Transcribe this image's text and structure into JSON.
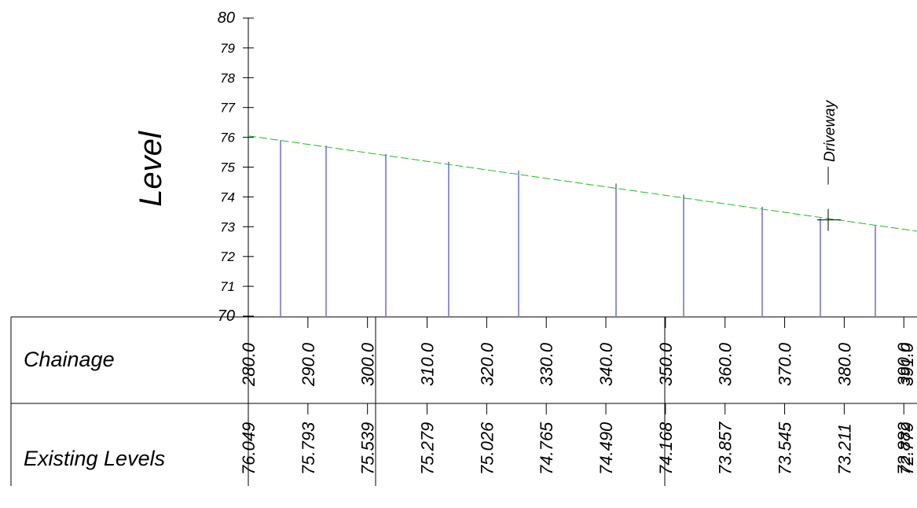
{
  "chart_data": {
    "type": "line",
    "title": "",
    "xlabel": "",
    "ylabel": "Level",
    "ylim": [
      70,
      80
    ],
    "yticks": [
      "70",
      "71",
      "72",
      "73",
      "74",
      "75",
      "76",
      "77",
      "78",
      "79",
      "80"
    ],
    "series": [
      {
        "color": "#22bb22",
        "style": "dashed",
        "x": [
          280,
          395
        ],
        "y": [
          76.049,
          72.77
        ]
      }
    ],
    "stations": [
      {
        "chainage": 280.0,
        "level": 76.049
      },
      {
        "chainage": 290.0,
        "level": 75.793
      },
      {
        "chainage": 300.0,
        "level": 75.539
      },
      {
        "chainage": 310.0,
        "level": 75.279
      },
      {
        "chainage": 320.0,
        "level": 75.026
      },
      {
        "chainage": 330.0,
        "level": 74.765
      },
      {
        "chainage": 340.0,
        "level": 74.49
      },
      {
        "chainage": 350.0,
        "level": 74.168
      },
      {
        "chainage": 360.0,
        "level": 73.857
      },
      {
        "chainage": 370.0,
        "level": 73.545
      },
      {
        "chainage": 380.0,
        "level": 73.211
      },
      {
        "chainage": 390.0,
        "level": 72.882
      }
    ],
    "surveyed_point_levels": [
      75.9,
      75.72,
      75.44,
      75.18,
      74.88,
      74.45,
      74.08,
      73.67,
      73.28,
      73.03
    ],
    "feature": {
      "label": "Driveway",
      "chainage": 381,
      "level": 73.23
    },
    "rows": [
      {
        "label": "Chainage",
        "values": [
          "280.0",
          "290.0",
          "300.0",
          "310.0",
          "320.0",
          "330.0",
          "340.0",
          "350.0",
          "360.0",
          "370.0",
          "380.0",
          "390.0"
        ],
        "clipped_extra": "391.0"
      },
      {
        "label": "Existing Levels",
        "values": [
          "76.049",
          "75.793",
          "75.539",
          "75.279",
          "75.026",
          "74.765",
          "74.490",
          "74.168",
          "73.857",
          "73.545",
          "73.211",
          "72.882"
        ],
        "clipped_extra": "72.779"
      }
    ],
    "colors": {
      "ground_line": "#22bb22",
      "verticals": "#2222cc",
      "axis": "#000000"
    }
  }
}
